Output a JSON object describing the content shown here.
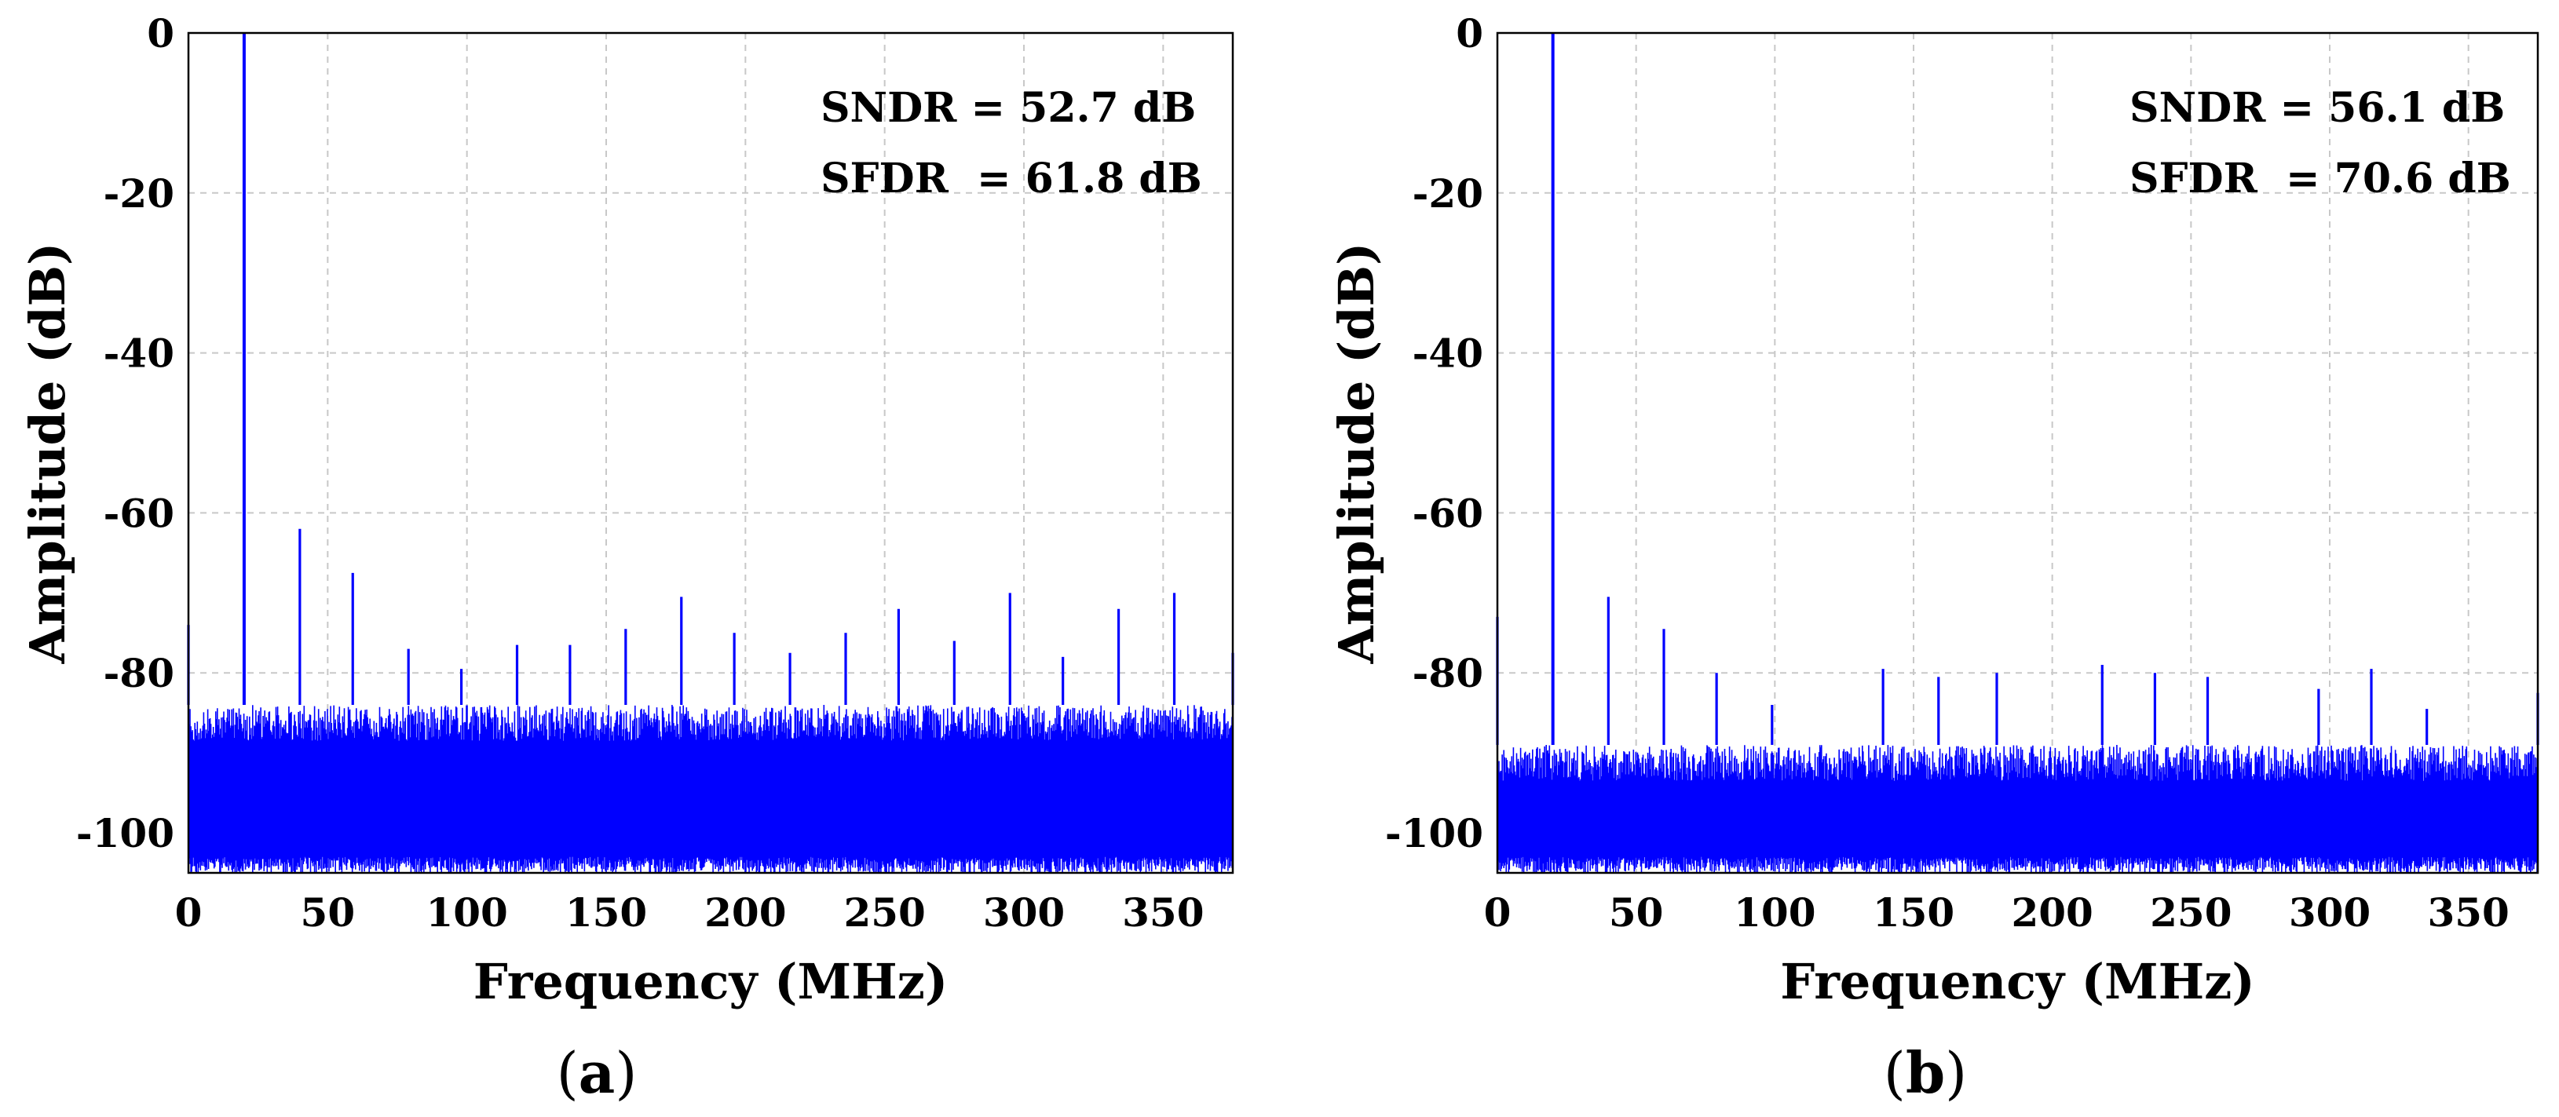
{
  "chart_data": [
    {
      "type": "line",
      "panel_label": "a",
      "xlabel": "Frequency (MHz)",
      "ylabel": "Amplitude (dB)",
      "xlim": [
        0,
        375
      ],
      "ylim": [
        -105,
        0
      ],
      "xticks": [
        0,
        50,
        100,
        150,
        200,
        250,
        300,
        350
      ],
      "yticks": [
        0,
        -20,
        -40,
        -60,
        -80,
        -100
      ],
      "grid": true,
      "color": "#0000ff",
      "annotations": [
        "SNDR = 52.7 dB",
        "SFDR  = 61.8 dB"
      ],
      "noise_floor_db": -84,
      "noise_depth_db": -105,
      "spurs": [
        {
          "freq": 0,
          "amp": -74
        },
        {
          "freq": 20,
          "amp": 0
        },
        {
          "freq": 40,
          "amp": -62
        },
        {
          "freq": 59,
          "amp": -67.5
        },
        {
          "freq": 79,
          "amp": -77
        },
        {
          "freq": 98,
          "amp": -79.5
        },
        {
          "freq": 118,
          "amp": -76.5
        },
        {
          "freq": 137,
          "amp": -76.5
        },
        {
          "freq": 157,
          "amp": -74.5
        },
        {
          "freq": 177,
          "amp": -70.5
        },
        {
          "freq": 196,
          "amp": -75
        },
        {
          "freq": 216,
          "amp": -77.5
        },
        {
          "freq": 236,
          "amp": -75
        },
        {
          "freq": 255,
          "amp": -72
        },
        {
          "freq": 275,
          "amp": -76
        },
        {
          "freq": 295,
          "amp": -70
        },
        {
          "freq": 314,
          "amp": -78
        },
        {
          "freq": 334,
          "amp": -72
        },
        {
          "freq": 354,
          "amp": -70
        },
        {
          "freq": 375,
          "amp": -77.5
        }
      ]
    },
    {
      "type": "line",
      "panel_label": "b",
      "xlabel": "Frequency (MHz)",
      "ylabel": "Amplitude (dB)",
      "xlim": [
        0,
        375
      ],
      "ylim": [
        -105,
        0
      ],
      "xticks": [
        0,
        50,
        100,
        150,
        200,
        250,
        300,
        350
      ],
      "yticks": [
        0,
        -20,
        -40,
        -60,
        -80,
        -100
      ],
      "grid": true,
      "color": "#0000ff",
      "annotations": [
        "SNDR = 56.1 dB",
        "SFDR  = 70.6 dB"
      ],
      "noise_floor_db": -89,
      "noise_depth_db": -105,
      "spurs": [
        {
          "freq": 0,
          "amp": -73
        },
        {
          "freq": 20,
          "amp": 0
        },
        {
          "freq": 40,
          "amp": -70.5
        },
        {
          "freq": 60,
          "amp": -74.5
        },
        {
          "freq": 79,
          "amp": -80
        },
        {
          "freq": 99,
          "amp": -84
        },
        {
          "freq": 139,
          "amp": -79.5
        },
        {
          "freq": 159,
          "amp": -80.5
        },
        {
          "freq": 180,
          "amp": -80
        },
        {
          "freq": 218,
          "amp": -79
        },
        {
          "freq": 237,
          "amp": -80
        },
        {
          "freq": 256,
          "amp": -80.5
        },
        {
          "freq": 296,
          "amp": -82
        },
        {
          "freq": 315,
          "amp": -79.5
        },
        {
          "freq": 335,
          "amp": -84.5
        },
        {
          "freq": 375,
          "amp": -82.5
        }
      ]
    }
  ]
}
